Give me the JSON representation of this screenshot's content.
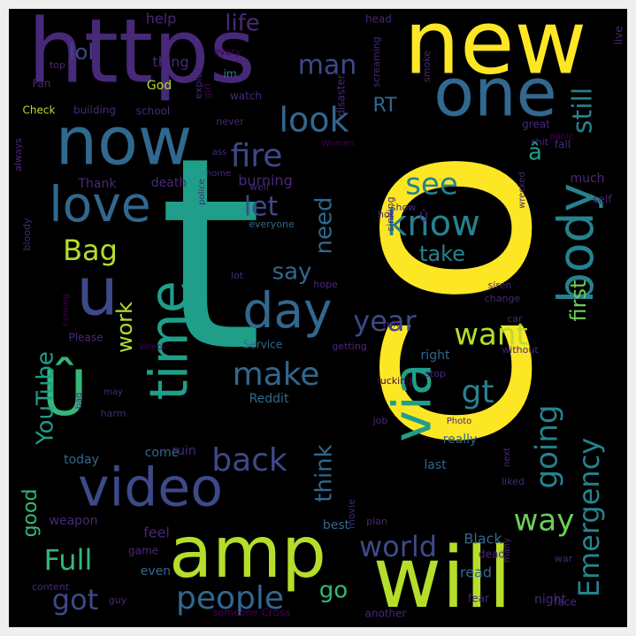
{
  "palette": {
    "frame": "#efefef",
    "background": "#000000",
    "yellow": "#fde725",
    "lime": "#b5de2b",
    "green": "#6ece58",
    "teal_green": "#35b779",
    "teal": "#1f9e89",
    "blue_teal": "#26828e",
    "steel": "#31688e",
    "indigo": "#3e4989",
    "purple": "#482878",
    "deep": "#440154"
  },
  "words": [
    "t",
    "co",
    "https",
    "new",
    "will",
    "amp",
    "one",
    "now",
    "time",
    "body",
    "u",
    "Û",
    "via",
    "video",
    "love",
    "day",
    "Emergency",
    "fire",
    "going",
    "look",
    "still",
    "know",
    "want",
    "YouTube",
    "Bag",
    "back",
    "people",
    "Full",
    "got",
    "world",
    "make",
    "see",
    "way",
    "need",
    "gt",
    "think",
    "first",
    "year",
    "good",
    "let",
    "say",
    "take",
    "man",
    "life",
    "lol",
    "RT",
    "go",
    "work",
    "help",
    "thing",
    "God",
    "Fan",
    "top",
    "Check",
    "building",
    "school",
    "Thank",
    "death",
    "burning",
    "every",
    "im",
    "watch",
    "girl",
    "explode",
    "disaster",
    "head",
    "screaming",
    "smoke",
    "live",
    "great",
    "panic",
    "much",
    "self",
    "fall",
    "shit",
    "never",
    "always",
    "ass",
    "home",
    "well",
    "police",
    "everyone",
    "hot",
    "sinking",
    "show",
    "wrecked",
    "bloody",
    "lot",
    "hope",
    "siren",
    "change",
    "car",
    "coming",
    "Please",
    "Service",
    "run",
    "getting",
    "without",
    "right",
    "Wreck",
    "bad",
    "may",
    "harm",
    "stop",
    "fucking",
    "Photo",
    "job",
    "Reddit",
    "come",
    "ruin",
    "today",
    "really",
    "last",
    "weapon",
    "best",
    "movie",
    "plan",
    "liked",
    "next",
    "feel",
    "game",
    "content",
    "guy",
    "even",
    "read",
    "dead",
    "face",
    "war",
    "fear",
    "night",
    "someone",
    "Cross",
    "another",
    "Black",
    "many",
    "Women",
    "â",
    "Û"
  ]
}
